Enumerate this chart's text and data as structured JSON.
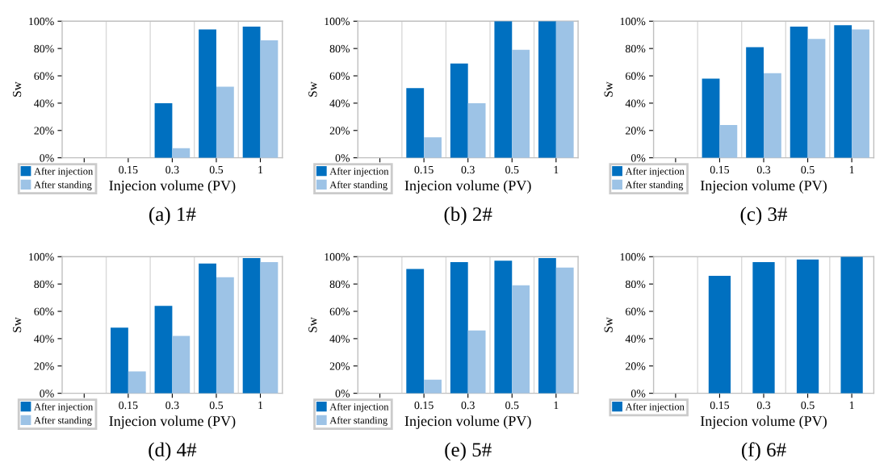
{
  "chart_data": [
    {
      "type": "bar",
      "title": "(a) 1#",
      "xlabel": "Injecion volume (PV)",
      "ylabel": "Sw",
      "categories": [
        null,
        "0.15",
        "0.3",
        "0.5",
        "1"
      ],
      "ylim": [
        0,
        100
      ],
      "yticks": [
        {
          "value": 0,
          "label": "0%"
        },
        {
          "value": 20,
          "label": "20%"
        },
        {
          "value": 40,
          "label": "40%"
        },
        {
          "value": 60,
          "label": "60%"
        },
        {
          "value": 80,
          "label": "80%"
        },
        {
          "value": 100,
          "label": "100%"
        }
      ],
      "grid": "x",
      "legend": "bottom left",
      "series": [
        {
          "name": "After injection",
          "color": "#0070c0",
          "values": [
            null,
            0,
            40,
            94,
            96
          ]
        },
        {
          "name": "After standing",
          "color": "#9dc3e6",
          "values": [
            null,
            0,
            7,
            52,
            86
          ]
        }
      ]
    },
    {
      "type": "bar",
      "title": "(b) 2#",
      "xlabel": "Injecion volume (PV)",
      "ylabel": "Sw",
      "categories": [
        null,
        "0.15",
        "0.3",
        "0.5",
        "1"
      ],
      "ylim": [
        0,
        100
      ],
      "yticks": [
        {
          "value": 0,
          "label": "0%"
        },
        {
          "value": 20,
          "label": "20%"
        },
        {
          "value": 40,
          "label": "40%"
        },
        {
          "value": 60,
          "label": "60%"
        },
        {
          "value": 80,
          "label": "80%"
        },
        {
          "value": 100,
          "label": "100%"
        }
      ],
      "grid": "x",
      "legend": "bottom left",
      "series": [
        {
          "name": "After injection",
          "color": "#0070c0",
          "values": [
            null,
            51,
            69,
            100,
            100
          ]
        },
        {
          "name": "After standing",
          "color": "#9dc3e6",
          "values": [
            null,
            15,
            40,
            79,
            100
          ]
        }
      ]
    },
    {
      "type": "bar",
      "title": "(c) 3#",
      "xlabel": "Injecion volume (PV)",
      "ylabel": "Sw",
      "categories": [
        null,
        "0.15",
        "0.3",
        "0.5",
        "1"
      ],
      "ylim": [
        0,
        100
      ],
      "yticks": [
        {
          "value": 0,
          "label": "0%"
        },
        {
          "value": 20,
          "label": "20%"
        },
        {
          "value": 40,
          "label": "40%"
        },
        {
          "value": 60,
          "label": "60%"
        },
        {
          "value": 80,
          "label": "80%"
        },
        {
          "value": 100,
          "label": "100%"
        }
      ],
      "grid": "x",
      "legend": "bottom left",
      "series": [
        {
          "name": "After injection",
          "color": "#0070c0",
          "values": [
            null,
            58,
            81,
            96,
            97
          ]
        },
        {
          "name": "After standing",
          "color": "#9dc3e6",
          "values": [
            null,
            24,
            62,
            87,
            94
          ]
        }
      ]
    },
    {
      "type": "bar",
      "title": "(d) 4#",
      "xlabel": "Injecion volume (PV)",
      "ylabel": "Sw",
      "categories": [
        null,
        "0.15",
        "0.3",
        "0.5",
        "1"
      ],
      "ylim": [
        0,
        100
      ],
      "yticks": [
        {
          "value": 0,
          "label": "0%"
        },
        {
          "value": 20,
          "label": "20%"
        },
        {
          "value": 40,
          "label": "40%"
        },
        {
          "value": 60,
          "label": "60%"
        },
        {
          "value": 80,
          "label": "80%"
        },
        {
          "value": 100,
          "label": "100%"
        }
      ],
      "grid": "x",
      "legend": "bottom left",
      "series": [
        {
          "name": "After injection",
          "color": "#0070c0",
          "values": [
            null,
            48,
            64,
            95,
            99
          ]
        },
        {
          "name": "After standing",
          "color": "#9dc3e6",
          "values": [
            null,
            16,
            42,
            85,
            96
          ]
        }
      ]
    },
    {
      "type": "bar",
      "title": "(e) 5#",
      "xlabel": "Injecion volume (PV)",
      "ylabel": "Sw",
      "categories": [
        null,
        "0.15",
        "0.3",
        "0.5",
        "1"
      ],
      "ylim": [
        0,
        100
      ],
      "yticks": [
        {
          "value": 0,
          "label": "0%"
        },
        {
          "value": 20,
          "label": "20%"
        },
        {
          "value": 40,
          "label": "40%"
        },
        {
          "value": 60,
          "label": "60%"
        },
        {
          "value": 80,
          "label": "80%"
        },
        {
          "value": 100,
          "label": "100%"
        }
      ],
      "grid": "x",
      "legend": "bottom left",
      "series": [
        {
          "name": "After injection",
          "color": "#0070c0",
          "values": [
            null,
            91,
            96,
            97,
            99
          ]
        },
        {
          "name": "After standing",
          "color": "#9dc3e6",
          "values": [
            null,
            10,
            46,
            79,
            92
          ]
        }
      ]
    },
    {
      "type": "bar",
      "title": "(f) 6#",
      "xlabel": "Injecion volume (PV)",
      "ylabel": "Sw",
      "categories": [
        null,
        "0.15",
        "0.3",
        "0.5",
        "1"
      ],
      "ylim": [
        0,
        100
      ],
      "yticks": [
        {
          "value": 0,
          "label": "0%"
        },
        {
          "value": 20,
          "label": "20%"
        },
        {
          "value": 40,
          "label": "40%"
        },
        {
          "value": 60,
          "label": "60%"
        },
        {
          "value": 80,
          "label": "80%"
        },
        {
          "value": 100,
          "label": "100%"
        }
      ],
      "grid": "x",
      "legend": "bottom left",
      "series": [
        {
          "name": "After injection",
          "color": "#0070c0",
          "values": [
            null,
            86,
            96,
            98,
            100
          ]
        }
      ]
    }
  ]
}
